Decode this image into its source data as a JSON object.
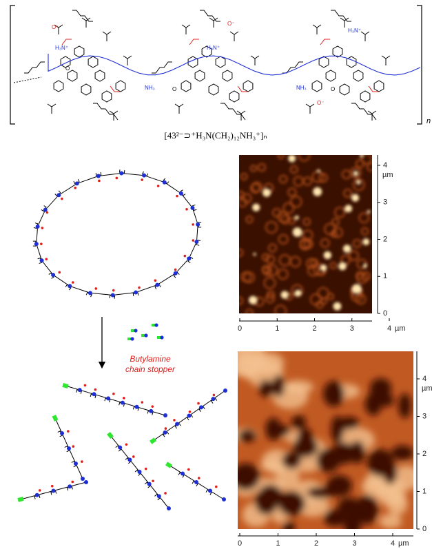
{
  "structure": {
    "labels": [
      "H₃N⁺",
      "NH₃",
      "O",
      "O⁻",
      "H₃N⁺",
      "NH₃",
      "O",
      "O⁻",
      "H₃N⁺",
      "O",
      "O⁻"
    ],
    "repeat_subscript": "n",
    "formula": "[43²⁻⊃⁺H₃N(CH₂)₁₂NH₃⁺]ₙ"
  },
  "scheme": {
    "reagent": [
      "Butylamine",
      "chain stopper"
    ]
  },
  "afm_images": [
    {
      "xticks": [
        0,
        1,
        2,
        3,
        4
      ],
      "x_unit": "µm",
      "yticks": [
        0,
        1,
        2,
        3,
        4
      ],
      "y_unit": "µm",
      "range": [
        0,
        4.3
      ]
    },
    {
      "xticks": [
        0,
        1,
        2,
        3,
        4
      ],
      "x_unit": "µm",
      "yticks": [
        0,
        1,
        2,
        3,
        4
      ],
      "y_unit": "µm",
      "range": [
        0,
        4.6
      ]
    }
  ]
}
